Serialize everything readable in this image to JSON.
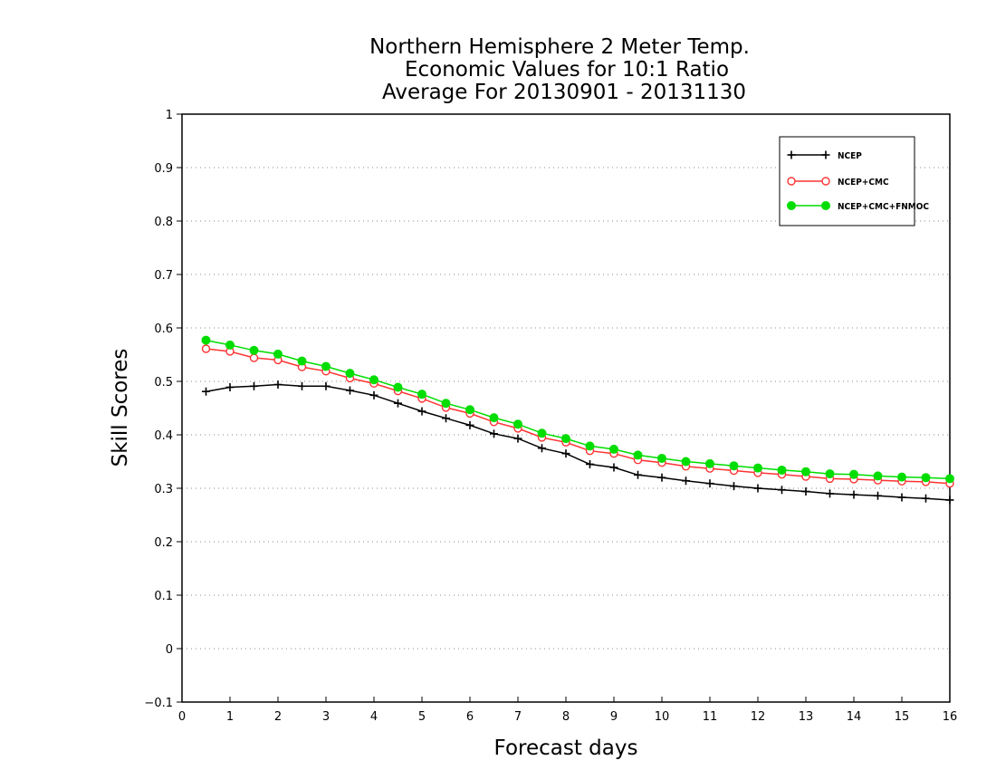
{
  "chart_data": {
    "type": "line",
    "title": [
      "Northern Hemisphere 2 Meter Temp.",
      "Economic Values for 10:1 Ratio",
      "Average For 20130901 - 20131130"
    ],
    "xlabel": "Forecast days",
    "ylabel": "Skill Scores",
    "xlim": [
      0,
      16
    ],
    "ylim": [
      -0.1,
      1
    ],
    "x_ticks": [
      "0",
      "1",
      "2",
      "3",
      "4",
      "5",
      "6",
      "7",
      "8",
      "9",
      "10",
      "11",
      "12",
      "13",
      "14",
      "15",
      "16"
    ],
    "y_ticks": [
      "−0.1",
      "0",
      "0.1",
      "0.2",
      "0.3",
      "0.4",
      "0.5",
      "0.6",
      "0.7",
      "0.8",
      "0.9",
      "1"
    ],
    "grid": "horizontal dotted",
    "legend_position": "top-right",
    "x": [
      0.5,
      1,
      1.5,
      2,
      2.5,
      3,
      3.5,
      4,
      4.5,
      5,
      5.5,
      6,
      6.5,
      7,
      7.5,
      8,
      8.5,
      9,
      9.5,
      10,
      10.5,
      11,
      11.5,
      12,
      12.5,
      13,
      13.5,
      14,
      14.5,
      15,
      15.5,
      16
    ],
    "series": [
      {
        "name": "NCEP",
        "color": "#000000",
        "marker": "plus",
        "values": [
          0.481,
          0.489,
          0.491,
          0.494,
          0.491,
          0.491,
          0.483,
          0.474,
          0.459,
          0.444,
          0.431,
          0.418,
          0.402,
          0.393,
          0.375,
          0.365,
          0.345,
          0.339,
          0.325,
          0.32,
          0.314,
          0.309,
          0.304,
          0.3,
          0.297,
          0.294,
          0.29,
          0.288,
          0.286,
          0.283,
          0.281,
          0.278
        ]
      },
      {
        "name": "NCEP+CMC",
        "color": "#ff3333",
        "marker": "open-circle",
        "values": [
          0.561,
          0.556,
          0.544,
          0.54,
          0.527,
          0.519,
          0.506,
          0.496,
          0.482,
          0.468,
          0.451,
          0.44,
          0.424,
          0.412,
          0.395,
          0.386,
          0.37,
          0.365,
          0.353,
          0.348,
          0.341,
          0.337,
          0.333,
          0.329,
          0.326,
          0.322,
          0.318,
          0.317,
          0.315,
          0.313,
          0.312,
          0.309
        ]
      },
      {
        "name": "NCEP+CMC+FNMOC",
        "color": "#00dd00",
        "marker": "filled-circle",
        "values": [
          0.577,
          0.568,
          0.558,
          0.551,
          0.538,
          0.528,
          0.515,
          0.503,
          0.489,
          0.476,
          0.459,
          0.447,
          0.432,
          0.42,
          0.403,
          0.393,
          0.379,
          0.373,
          0.362,
          0.356,
          0.35,
          0.346,
          0.342,
          0.338,
          0.334,
          0.331,
          0.327,
          0.326,
          0.323,
          0.321,
          0.32,
          0.318
        ]
      }
    ]
  }
}
